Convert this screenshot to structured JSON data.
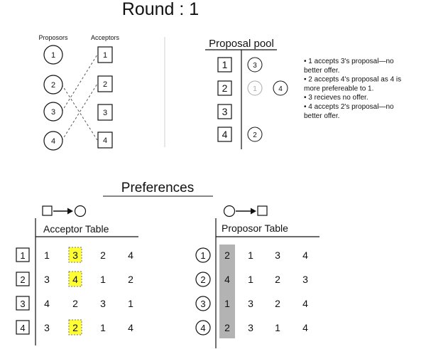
{
  "title": "Round :  1",
  "matching": {
    "proposors_label": "Proposors",
    "acceptors_label": "Acceptors",
    "proposors": [
      "1",
      "2",
      "3",
      "4"
    ],
    "acceptors": [
      "1",
      "2",
      "3",
      "4"
    ],
    "proposals": [
      {
        "from": "2",
        "to": "4"
      },
      {
        "from": "3",
        "to": "1"
      },
      {
        "from": "4",
        "to": "2"
      }
    ]
  },
  "pool": {
    "title": "Proposal pool",
    "rows": [
      {
        "acceptor": "1",
        "held": [
          "3"
        ],
        "rejected": []
      },
      {
        "acceptor": "2",
        "held": [
          "4"
        ],
        "rejected": [
          "1"
        ]
      },
      {
        "acceptor": "3",
        "held": [],
        "rejected": []
      },
      {
        "acceptor": "4",
        "held": [
          "2"
        ],
        "rejected": []
      }
    ]
  },
  "notes": [
    "• 1 accepts 3's proposal—no",
    "better offer.",
    "• 2 accepts 4's proposal as 4 is",
    "more prefereable to 1.",
    "• 3 recieves no offer.",
    "• 4 accepts 2's proposal—no",
    "better offer."
  ],
  "preferences": {
    "title": "Preferences",
    "acceptor_table": {
      "title": "Acceptor Table",
      "rows": [
        {
          "id": "1",
          "prefs": [
            "1",
            "3",
            "2",
            "4"
          ],
          "highlight": 1
        },
        {
          "id": "2",
          "prefs": [
            "3",
            "4",
            "1",
            "2"
          ],
          "highlight": 1
        },
        {
          "id": "3",
          "prefs": [
            "4",
            "2",
            "3",
            "1"
          ],
          "highlight": -1
        },
        {
          "id": "4",
          "prefs": [
            "3",
            "2",
            "1",
            "4"
          ],
          "highlight": 1
        }
      ]
    },
    "proposor_table": {
      "title": "Proposor Table",
      "rows": [
        {
          "id": "1",
          "prefs": [
            "2",
            "1",
            "3",
            "4"
          ]
        },
        {
          "id": "2",
          "prefs": [
            "4",
            "1",
            "2",
            "3"
          ]
        },
        {
          "id": "3",
          "prefs": [
            "1",
            "3",
            "2",
            "4"
          ]
        },
        {
          "id": "4",
          "prefs": [
            "2",
            "3",
            "1",
            "4"
          ]
        }
      ],
      "shaded_column": 0
    }
  },
  "colors": {
    "highlight": "#ffff33",
    "shade": "#b3b3b3",
    "rejected": "#aaaaaa"
  }
}
